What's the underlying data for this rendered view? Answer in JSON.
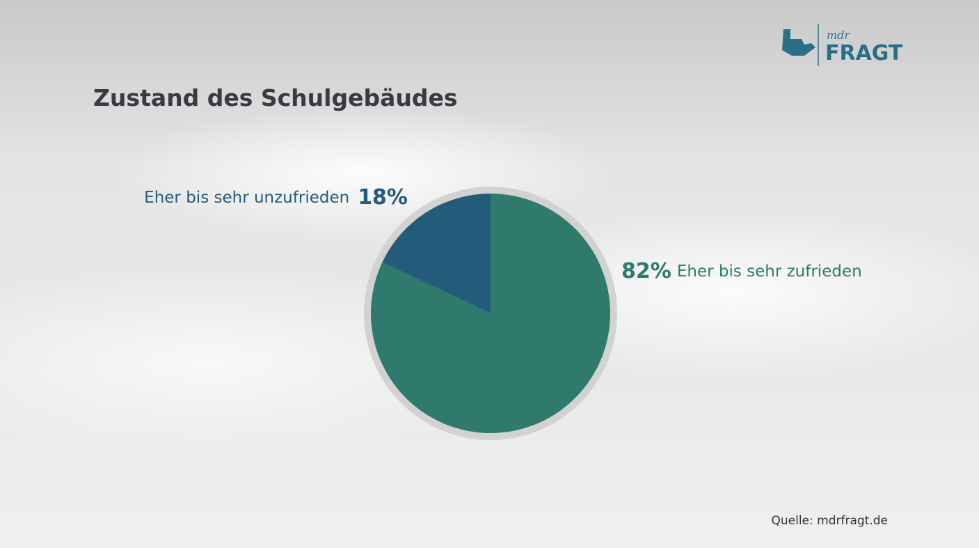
{
  "chart_data": {
    "type": "pie",
    "title": "Zustand des Schulgebäudes",
    "categories": [
      "Eher bis sehr zufrieden",
      "Eher bis sehr unzufrieden"
    ],
    "values": [
      82,
      18
    ],
    "value_labels": [
      "82%",
      "18%"
    ],
    "colors": [
      "#2f7a6c",
      "#235c7a"
    ],
    "source": "Quelle: mdrfragt.de"
  },
  "logo": {
    "small": "mdr",
    "large": "FRAGT"
  }
}
